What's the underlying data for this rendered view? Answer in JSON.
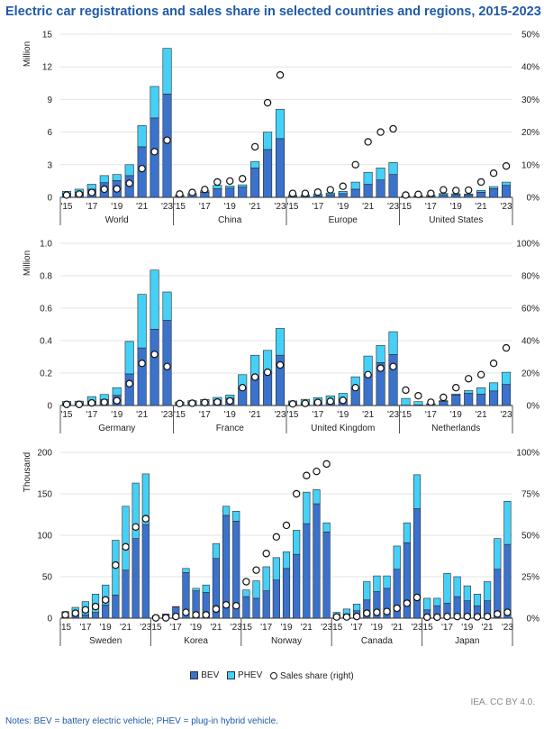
{
  "title": "Electric car registrations and sales share in selected countries and regions, 2015-2023",
  "legend": {
    "bev": "BEV",
    "phev": "PHEV",
    "share": "Sales share (right)"
  },
  "source": "IEA. CC BY 4.0.",
  "notes": "Notes: BEV = battery electric vehicle; PHEV = plug-in hybrid vehicle.",
  "colors": {
    "bev": "#3a72cc",
    "phev": "#45d0f7",
    "share_marker": "#ffffff",
    "grid": "#e3e3e3"
  },
  "chart_data": [
    {
      "type": "bar",
      "stacked": true,
      "ylabel": "Million",
      "ylim": [
        0,
        15
      ],
      "yticks": [
        "0",
        "3",
        "6",
        "9",
        "12",
        "15"
      ],
      "y2lim": [
        0,
        50
      ],
      "y2ticks": [
        "0%",
        "10%",
        "20%",
        "30%",
        "40%",
        "50%"
      ],
      "x_tick_labels": [
        "'15",
        "'17",
        "'19",
        "'21",
        "'23"
      ],
      "grid": true,
      "groups": [
        {
          "name": "World",
          "bev": [
            0.35,
            0.45,
            0.75,
            1.35,
            1.55,
            2.0,
            4.65,
            7.3,
            9.5
          ],
          "phev": [
            0.2,
            0.3,
            0.45,
            0.65,
            0.55,
            1.0,
            1.95,
            2.9,
            4.2
          ],
          "share": [
            0.7,
            1,
            1.5,
            2.5,
            2.6,
            4.3,
            8.8,
            14,
            17.5
          ]
        },
        {
          "name": "China",
          "bev": [
            0.15,
            0.26,
            0.47,
            0.8,
            0.85,
            0.95,
            2.7,
            4.4,
            5.4
          ],
          "phev": [
            0.05,
            0.09,
            0.13,
            0.3,
            0.2,
            0.2,
            0.6,
            1.6,
            2.7
          ],
          "share": [
            1,
            1.5,
            2.4,
            4.7,
            5,
            5.7,
            15.5,
            29,
            37.5
          ]
        },
        {
          "name": "Europe",
          "bev": [
            0.1,
            0.1,
            0.15,
            0.25,
            0.35,
            0.75,
            1.2,
            1.6,
            2.1
          ],
          "phev": [
            0.1,
            0.12,
            0.15,
            0.15,
            0.2,
            0.65,
            1.1,
            1.1,
            1.1
          ],
          "share": [
            1.2,
            1.2,
            1.6,
            2.3,
            3.4,
            10,
            17,
            20,
            21
          ]
        },
        {
          "name": "United States",
          "bev": [
            0.07,
            0.09,
            0.1,
            0.25,
            0.25,
            0.24,
            0.47,
            0.8,
            1.1
          ],
          "phev": [
            0.04,
            0.07,
            0.1,
            0.11,
            0.08,
            0.06,
            0.16,
            0.19,
            0.3
          ],
          "share": [
            0.7,
            0.9,
            1.2,
            2.3,
            2.1,
            2.2,
            4.7,
            7.4,
            9.6
          ]
        }
      ]
    },
    {
      "type": "bar",
      "stacked": true,
      "ylabel": "Million",
      "ylim": [
        0,
        1.0
      ],
      "yticks": [
        "0",
        "0.2",
        "0.4",
        "0.6",
        "0.8",
        "1.0"
      ],
      "y2lim": [
        0,
        100
      ],
      "y2ticks": [
        "0%",
        "20%",
        "40%",
        "60%",
        "80%",
        "100%"
      ],
      "x_tick_labels": [
        "'15",
        "'17",
        "'19",
        "'21",
        "'23"
      ],
      "grid": true,
      "groups": [
        {
          "name": "Germany",
          "bev": [
            0.012,
            0.011,
            0.025,
            0.036,
            0.063,
            0.195,
            0.355,
            0.47,
            0.525
          ],
          "phev": [
            0.013,
            0.016,
            0.03,
            0.032,
            0.047,
            0.2,
            0.33,
            0.365,
            0.175
          ],
          "share": [
            0.7,
            0.7,
            1.6,
            2,
            3,
            13.5,
            26,
            31.5,
            24
          ]
        },
        {
          "name": "France",
          "bev": [
            0.017,
            0.022,
            0.026,
            0.033,
            0.045,
            0.11,
            0.165,
            0.205,
            0.31
          ],
          "phev": [
            0.005,
            0.008,
            0.011,
            0.017,
            0.02,
            0.08,
            0.145,
            0.135,
            0.165
          ],
          "share": [
            1.2,
            1.4,
            1.8,
            2.1,
            2.8,
            11,
            17.5,
            20.5,
            25
          ]
        },
        {
          "name": "United Kingdom",
          "bev": [
            0.01,
            0.01,
            0.014,
            0.016,
            0.038,
            0.108,
            0.19,
            0.265,
            0.315
          ],
          "phev": [
            0.018,
            0.028,
            0.034,
            0.044,
            0.037,
            0.069,
            0.115,
            0.105,
            0.14
          ],
          "share": [
            1,
            1.3,
            1.9,
            2.6,
            3.2,
            11,
            19,
            23,
            24
          ]
        },
        {
          "name": "Netherlands",
          "bev": [
            0.002,
            0.004,
            0.01,
            0.025,
            0.065,
            0.075,
            0.07,
            0.09,
            0.13
          ],
          "phev": [
            0.042,
            0.02,
            0.001,
            0.005,
            0.006,
            0.017,
            0.04,
            0.05,
            0.075
          ],
          "share": [
            9.5,
            6,
            2,
            5,
            11,
            16.5,
            19,
            26,
            35.5
          ]
        }
      ]
    },
    {
      "type": "bar",
      "stacked": true,
      "ylabel": "Thousand",
      "ylim": [
        0,
        200
      ],
      "yticks": [
        "0",
        "50",
        "100",
        "150",
        "200"
      ],
      "y2lim": [
        0,
        100
      ],
      "y2ticks": [
        "0%",
        "25%",
        "50%",
        "75%",
        "100%"
      ],
      "x_tick_labels": [
        "'15",
        "'17",
        "'19",
        "'21",
        "'23"
      ],
      "grid": true,
      "groups": [
        {
          "name": "Sweden",
          "bev": [
            3,
            3,
            4,
            7,
            16,
            28,
            58,
            96,
            113
          ],
          "phev": [
            5,
            10,
            16,
            22,
            24,
            66,
            77,
            67,
            61
          ],
          "share": [
            2,
            3,
            5,
            7,
            11,
            32,
            43,
            55,
            60
          ]
        },
        {
          "name": "Korea",
          "bev": [
            2.5,
            5,
            13.5,
            55,
            33,
            31,
            72,
            124,
            117
          ],
          "phev": [
            0.5,
            0,
            0.5,
            5,
            3,
            9,
            18,
            11,
            12
          ],
          "share": [
            0.2,
            0.2,
            1,
            3.5,
            2,
            2,
            5.5,
            8,
            7.5
          ]
        },
        {
          "name": "Norway",
          "bev": [
            26,
            24,
            33,
            46,
            60,
            77,
            114,
            138,
            104
          ],
          "phev": [
            8,
            21,
            29,
            27,
            20,
            29,
            38,
            17,
            11
          ],
          "share": [
            22,
            29,
            39,
            49,
            56,
            75,
            86,
            88.5,
            93
          ]
        },
        {
          "name": "Canada",
          "bev": [
            3,
            5,
            9,
            22,
            32,
            36,
            59,
            91,
            132
          ],
          "phev": [
            4,
            6,
            8,
            22,
            19,
            15,
            28,
            24,
            41
          ],
          "share": [
            0.7,
            0.7,
            1,
            3,
            3.5,
            4,
            6,
            9,
            12.5
          ]
        },
        {
          "name": "Japan",
          "bev": [
            10,
            15,
            18,
            26,
            21,
            15,
            21,
            59,
            89
          ],
          "phev": [
            14,
            9,
            36,
            24,
            18,
            14,
            23,
            37,
            52
          ],
          "share": [
            0.6,
            0.6,
            1,
            1,
            1,
            0.8,
            1,
            2.5,
            3.5
          ]
        }
      ]
    }
  ]
}
